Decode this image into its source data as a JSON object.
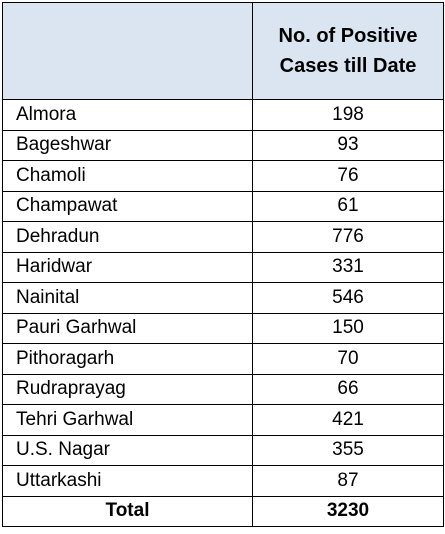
{
  "chart_data": {
    "type": "table",
    "columns": [
      "",
      "No. of Positive Cases till Date"
    ],
    "rows": [
      {
        "district": "Almora",
        "cases": "198"
      },
      {
        "district": "Bageshwar",
        "cases": "93"
      },
      {
        "district": "Chamoli",
        "cases": "76"
      },
      {
        "district": "Champawat",
        "cases": "61"
      },
      {
        "district": "Dehradun",
        "cases": "776"
      },
      {
        "district": "Haridwar",
        "cases": "331"
      },
      {
        "district": "Nainital",
        "cases": "546"
      },
      {
        "district": "Pauri Garhwal",
        "cases": "150"
      },
      {
        "district": "Pithoragarh",
        "cases": "70"
      },
      {
        "district": "Rudraprayag",
        "cases": "66"
      },
      {
        "district": "Tehri Garhwal",
        "cases": "421"
      },
      {
        "district": "U.S. Nagar",
        "cases": "355"
      },
      {
        "district": "Uttarkashi",
        "cases": "87"
      }
    ],
    "total": {
      "label": "Total",
      "cases": "3230"
    }
  },
  "colors": {
    "header_fill": "#dbe5f1",
    "border": "#000000",
    "text": "#000000"
  }
}
